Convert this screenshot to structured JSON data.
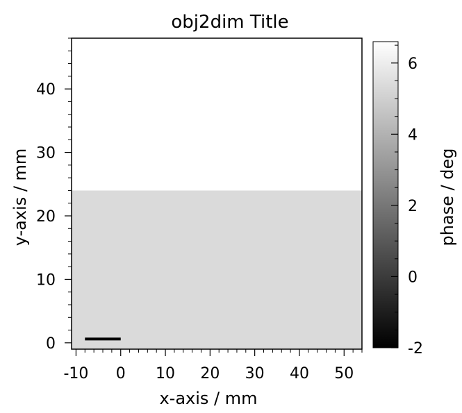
{
  "chart_data": {
    "type": "heatmap",
    "title": "obj2dim Title",
    "xlabel": "x-axis / mm",
    "ylabel": "y-axis / mm",
    "xlim": [
      -11,
      54
    ],
    "ylim": [
      -1,
      48
    ],
    "x_major_ticks": [
      -10,
      0,
      10,
      20,
      30,
      40,
      50
    ],
    "x_tick_labels": [
      "-10",
      "0",
      "10",
      "20",
      "30",
      "40",
      "50"
    ],
    "x_minor_step": 2,
    "y_major_ticks": [
      0,
      10,
      20,
      30,
      40
    ],
    "y_tick_labels": [
      "0",
      "10",
      "20",
      "30",
      "40"
    ],
    "y_minor_step": 2,
    "regions": [
      {
        "x": [
          -11,
          54
        ],
        "y": [
          -1,
          24
        ],
        "value": 5.35
      },
      {
        "x": [
          -11,
          54
        ],
        "y": [
          24,
          48
        ],
        "value": 6.6
      }
    ],
    "scale_bar": {
      "x": [
        -8,
        0
      ],
      "y": 0.6,
      "color": "#000000"
    },
    "colorbar": {
      "label": "phase / deg",
      "range": [
        -2,
        6.6
      ],
      "major_ticks": [
        -2,
        0,
        2,
        4,
        6
      ],
      "tick_labels": [
        "-2",
        "0",
        "2",
        "4",
        "6"
      ],
      "minor_step": 0.5,
      "colormap": [
        "#000000",
        "#ffffff"
      ]
    },
    "grid": false
  }
}
